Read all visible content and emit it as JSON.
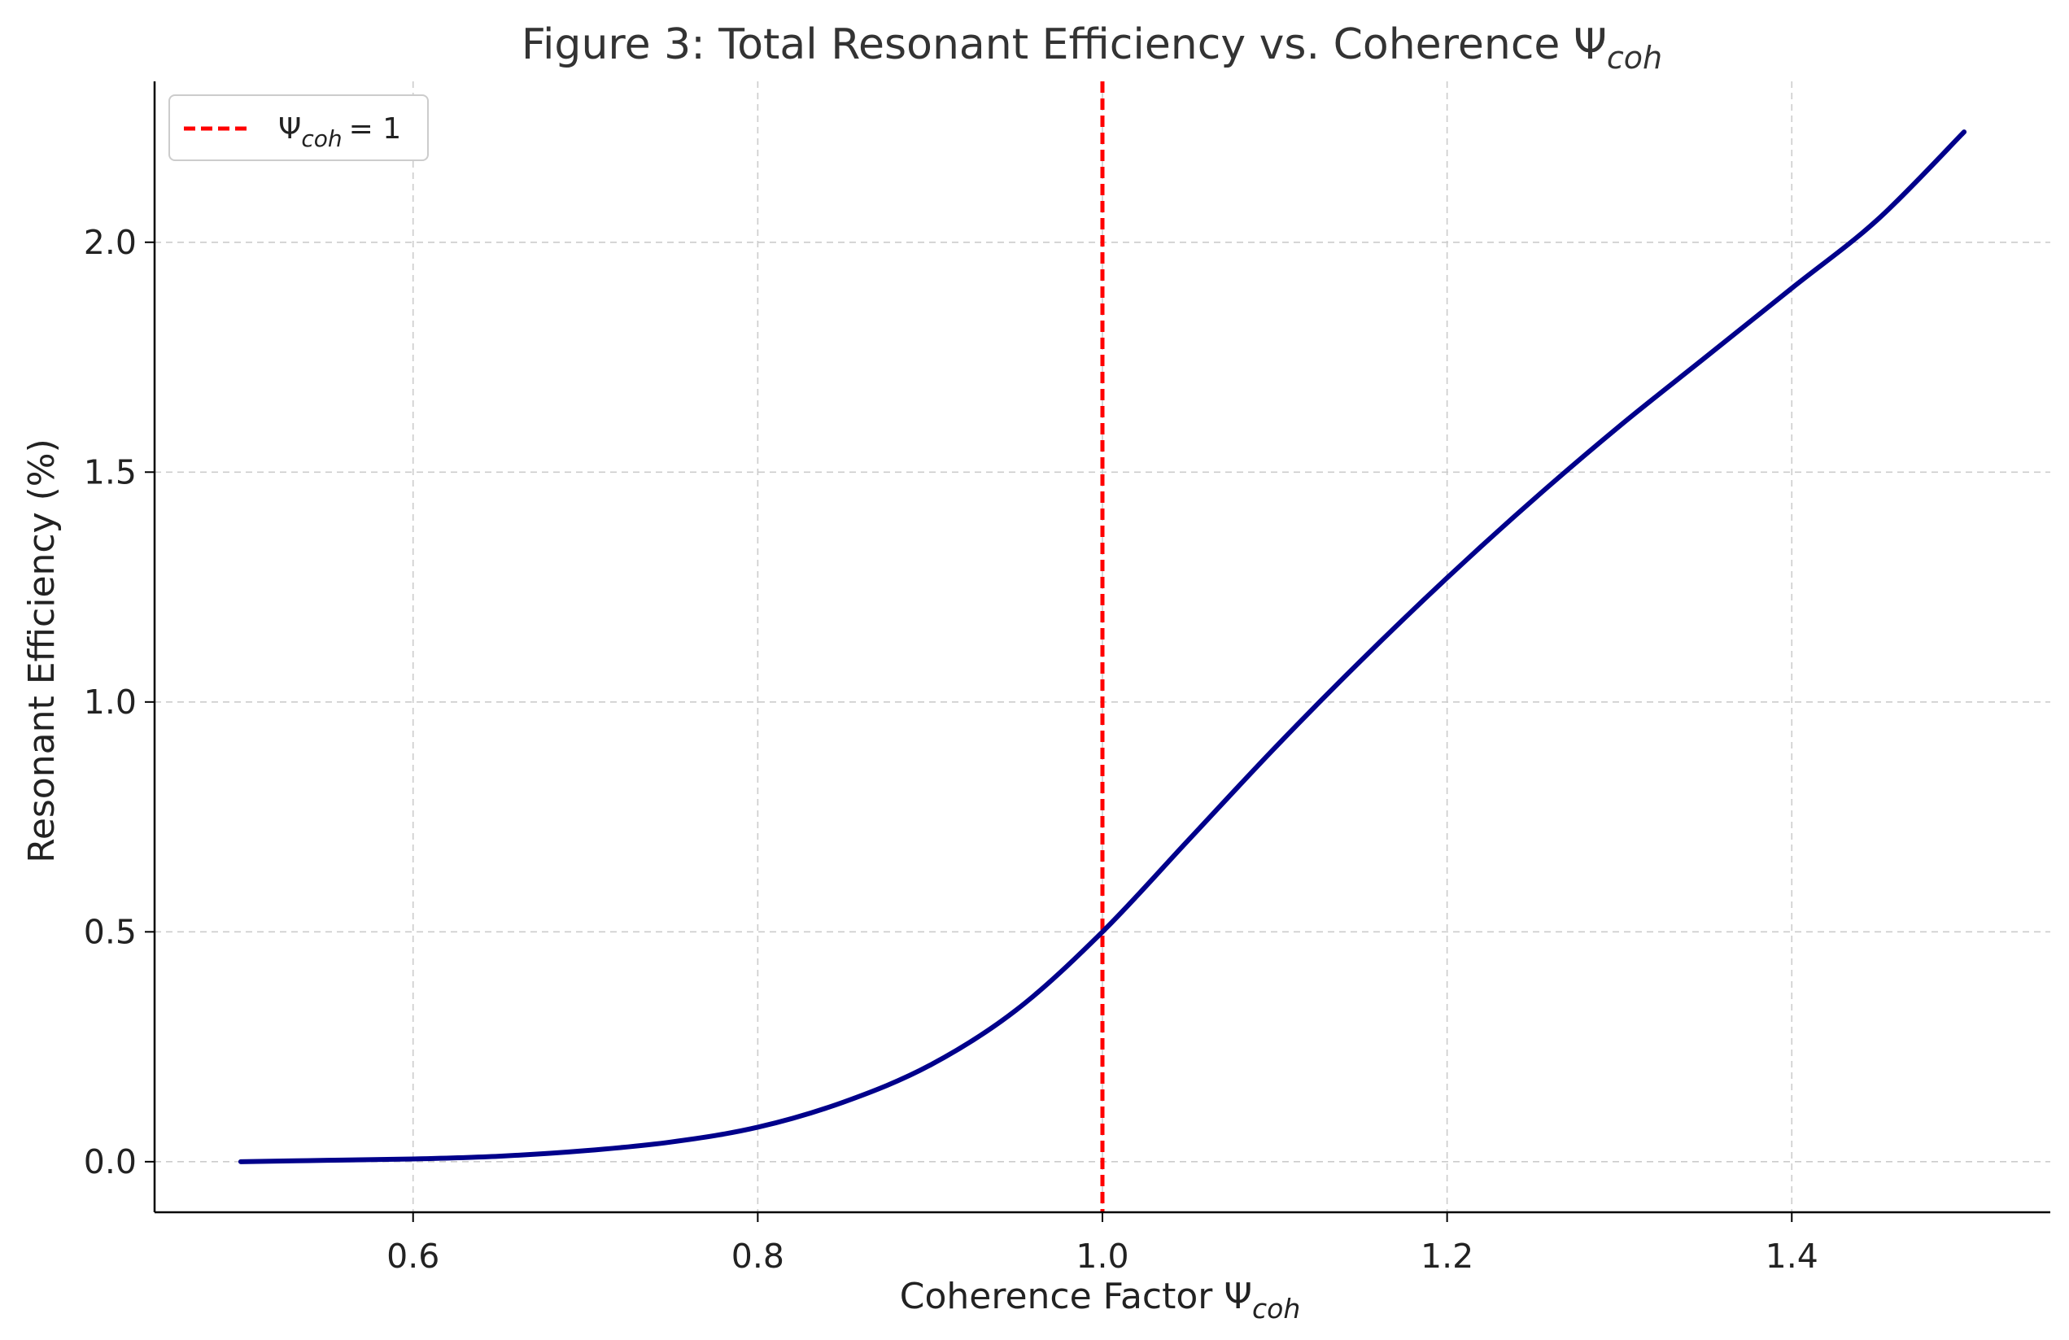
{
  "chart_data": {
    "type": "line",
    "title": "Figure 3: Total Resonant Efficiency vs. Coherence Ψ",
    "title_subscript": "coh",
    "xlabel": "Coherence Factor Ψ",
    "xlabel_subscript": "coh",
    "ylabel": "Resonant Efficiency (%)",
    "xlim": [
      0.45,
      1.55
    ],
    "ylim": [
      -0.11,
      2.35
    ],
    "x_ticks": [
      0.6,
      0.8,
      1.0,
      1.2,
      1.4
    ],
    "x_tick_labels": [
      "0.6",
      "0.8",
      "1.0",
      "1.2",
      "1.4"
    ],
    "y_ticks": [
      0.0,
      0.5,
      1.0,
      1.5,
      2.0
    ],
    "y_tick_labels": [
      "0.0",
      "0.5",
      "1.0",
      "1.5",
      "2.0"
    ],
    "grid": true,
    "legend_position": "top-left",
    "series": [
      {
        "color": "#00008B",
        "x": [
          0.5,
          0.55,
          0.6,
          0.65,
          0.7,
          0.75,
          0.8,
          0.85,
          0.9,
          0.95,
          1.0,
          1.05,
          1.1,
          1.15,
          1.2,
          1.25,
          1.3,
          1.35,
          1.4,
          1.45,
          1.5
        ],
        "y": [
          0.0,
          0.003,
          0.006,
          0.012,
          0.024,
          0.043,
          0.075,
          0.13,
          0.21,
          0.33,
          0.5,
          0.7,
          0.9,
          1.09,
          1.27,
          1.44,
          1.6,
          1.75,
          1.9,
          2.05,
          2.24
        ]
      }
    ],
    "vlines": [
      {
        "x": 1.0,
        "color": "#FF0000",
        "style": "dashed",
        "legend_label": "Ψ",
        "legend_subscript": "coh",
        "legend_suffix": "= 1"
      }
    ]
  }
}
